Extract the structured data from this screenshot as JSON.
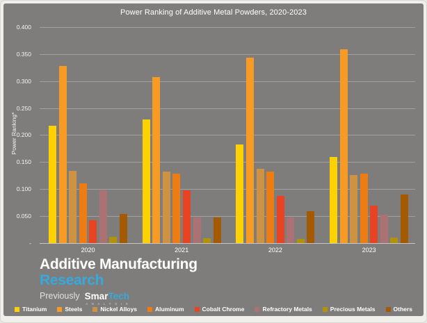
{
  "title": "Power Ranking of Additive Metal Powders, 2020-2023",
  "y_axis": {
    "title": "Power Ranking*",
    "ticks": [
      "0.400",
      "0.350",
      "0.300",
      "0.250",
      "0.200",
      "0.150",
      "0.100",
      "0.050",
      "-"
    ]
  },
  "chart_data": {
    "type": "bar",
    "title": "Power Ranking of Additive Metal Powders, 2020-2023",
    "xlabel": "",
    "ylabel": "Power Ranking*",
    "ylim": [
      0,
      0.4
    ],
    "gridline_step": 0.05,
    "grid": true,
    "legend_position": "bottom",
    "background_color": "#7e7d7b",
    "categories": [
      "2020",
      "2021",
      "2022",
      "2023"
    ],
    "series": [
      {
        "name": "Titanium",
        "color": "#ffd100",
        "values": [
          0.217,
          0.229,
          0.183,
          0.16
        ]
      },
      {
        "name": "Steels",
        "color": "#f79b24",
        "values": [
          0.328,
          0.307,
          0.343,
          0.358
        ]
      },
      {
        "name": "Nickel Alloys",
        "color": "#cd9342",
        "values": [
          0.134,
          0.133,
          0.137,
          0.126
        ]
      },
      {
        "name": "Aluminum",
        "color": "#ed7d12",
        "values": [
          0.111,
          0.129,
          0.133,
          0.129
        ]
      },
      {
        "name": "Cobalt Chrome",
        "color": "#e84323",
        "values": [
          0.043,
          0.098,
          0.088,
          0.07
        ]
      },
      {
        "name": "Refractory Metals",
        "color": "#ab7173",
        "values": [
          0.098,
          0.047,
          0.047,
          0.053
        ]
      },
      {
        "name": "Precious Metals",
        "color": "#b2920a",
        "values": [
          0.012,
          0.009,
          0.008,
          0.01
        ]
      },
      {
        "name": "Others",
        "color": "#a45a00",
        "values": [
          0.054,
          0.048,
          0.059,
          0.09
        ]
      }
    ]
  },
  "logo": {
    "line1": "Additive Manufacturing",
    "line2": "Research",
    "previously": "Previously",
    "brand_smar": "Smar",
    "brand_tech": "Tech",
    "brand_sub": "A N A L Y S I S",
    "accent_blue": "#36a9de"
  }
}
